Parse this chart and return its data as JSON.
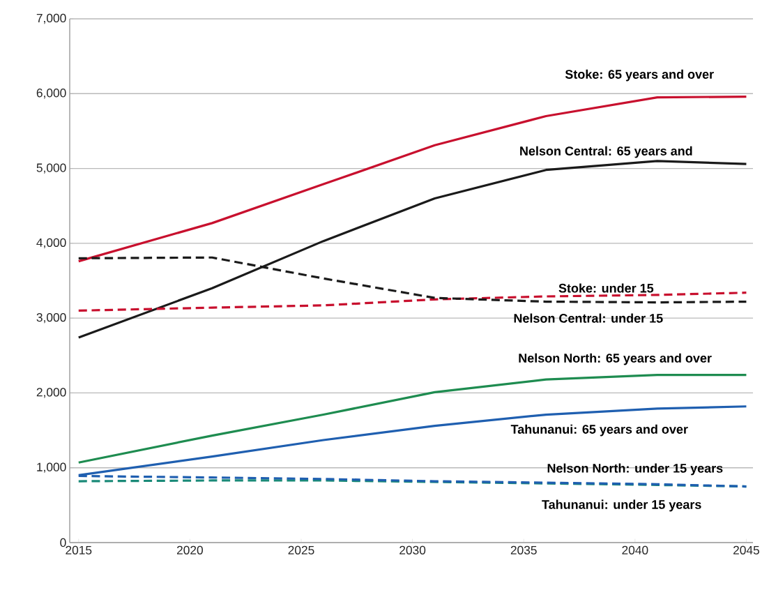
{
  "chart_data": {
    "type": "line",
    "x": [
      2015,
      2021,
      2026,
      2031,
      2036,
      2041,
      2045
    ],
    "series": [
      {
        "name": "Stoke: 65 years and over",
        "color": "#c8102e",
        "line_style": "solid",
        "values": [
          3760,
          4270,
          4790,
          5310,
          5700,
          5950,
          5960
        ]
      },
      {
        "name": "Nelson Central: 65 years and",
        "color": "#1a1a1a",
        "line_style": "solid",
        "values": [
          2740,
          3400,
          4030,
          4600,
          4980,
          5100,
          5060
        ]
      },
      {
        "name": "Stoke: under 15",
        "color": "#c8102e",
        "line_style": "dashed",
        "values": [
          3100,
          3140,
          3170,
          3250,
          3290,
          3310,
          3340
        ]
      },
      {
        "name": "Nelson Central: under 15",
        "color": "#1a1a1a",
        "line_style": "dashed",
        "values": [
          3800,
          3810,
          3530,
          3270,
          3220,
          3210,
          3220
        ]
      },
      {
        "name": "Nelson North: 65 years and over",
        "color": "#1e8c50",
        "line_style": "solid",
        "values": [
          1070,
          1430,
          1710,
          2010,
          2180,
          2240,
          2240
        ]
      },
      {
        "name": "Tahunanui: 65 years and over",
        "color": "#1f5fb0",
        "line_style": "solid",
        "values": [
          900,
          1150,
          1370,
          1560,
          1710,
          1790,
          1820
        ]
      },
      {
        "name": "Nelson North: under 15 years",
        "color": "#1a8a78",
        "line_style": "dashed",
        "values": [
          820,
          830,
          830,
          810,
          790,
          770,
          750
        ]
      },
      {
        "name": "Tahunanui: under 15 years",
        "color": "#1f5fb0",
        "line_style": "dashed",
        "values": [
          890,
          870,
          850,
          820,
          800,
          780,
          750
        ]
      }
    ],
    "xlim": [
      2014.6,
      2045.3
    ],
    "ylim": [
      0,
      7000
    ],
    "xticks": [
      2015,
      2020,
      2025,
      2030,
      2035,
      2040,
      2045
    ],
    "yticks": [
      0,
      {
        "value": 1000,
        "label": "1,000"
      },
      {
        "value": 2000,
        "label": "2,000"
      },
      {
        "value": 3000,
        "label": "3,000"
      },
      {
        "value": 4000,
        "label": "4,000"
      },
      {
        "value": 5000,
        "label": "5,000"
      },
      {
        "value": 6000,
        "label": "6,000"
      },
      {
        "value": 7000,
        "label": "7,000"
      }
    ],
    "grid": "y",
    "marker": "none",
    "legend": false
  }
}
